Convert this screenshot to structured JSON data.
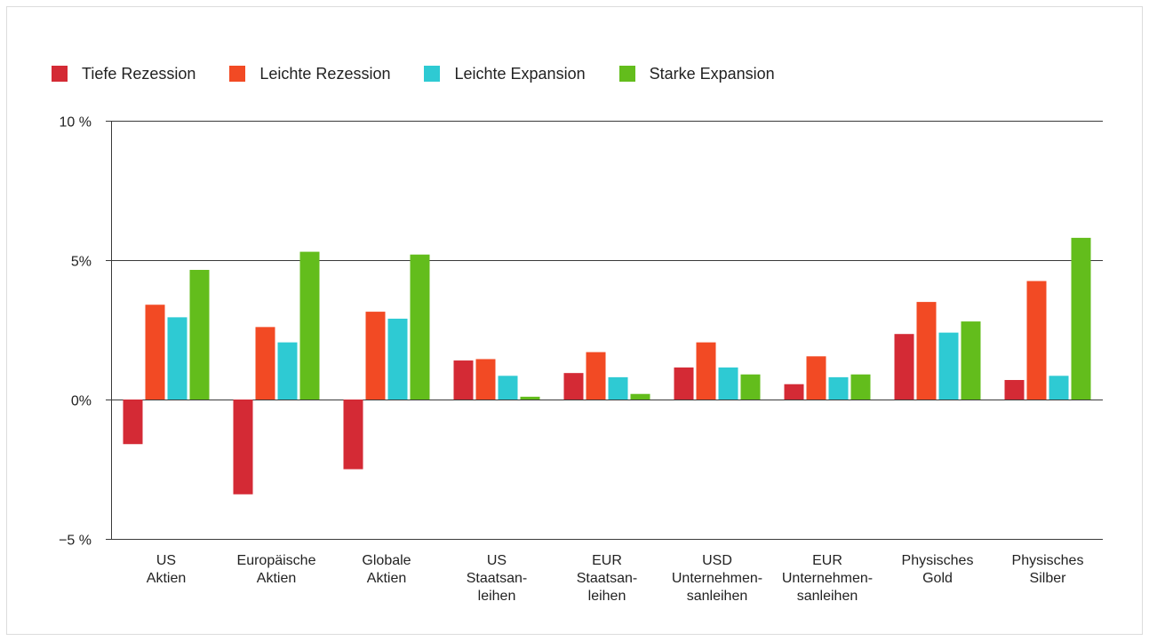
{
  "chart_data": {
    "type": "bar",
    "categories": [
      [
        "US",
        "Aktien"
      ],
      [
        "Europäische",
        "Aktien"
      ],
      [
        "Globale",
        "Aktien"
      ],
      [
        "US",
        "Staatsan-",
        "leihen"
      ],
      [
        "EUR",
        "Staatsan-",
        "leihen"
      ],
      [
        "USD",
        "Unternehmen-",
        "sanleihen"
      ],
      [
        "EUR",
        "Unternehmen-",
        "sanleihen"
      ],
      [
        "Physisches",
        "Gold"
      ],
      [
        "Physisches",
        "Silber"
      ]
    ],
    "series": [
      {
        "name": "Tiefe Rezession",
        "color": "#d42a35",
        "values": [
          -1.6,
          -3.4,
          -2.5,
          1.4,
          0.95,
          1.15,
          0.55,
          2.35,
          0.7
        ]
      },
      {
        "name": "Leichte Rezession",
        "color": "#f24a24",
        "values": [
          3.4,
          2.6,
          3.15,
          1.45,
          1.7,
          2.05,
          1.55,
          3.5,
          4.25
        ]
      },
      {
        "name": "Leichte Expansion",
        "color": "#2ecad3",
        "values": [
          2.95,
          2.05,
          2.9,
          0.85,
          0.8,
          1.15,
          0.8,
          2.4,
          0.85
        ]
      },
      {
        "name": "Starke Expansion",
        "color": "#63bd1c",
        "values": [
          4.65,
          5.3,
          5.2,
          0.1,
          0.2,
          0.9,
          0.9,
          2.8,
          5.8
        ]
      }
    ],
    "yticks": [
      -5,
      0,
      5,
      10
    ],
    "ytick_labels": [
      "−5 %",
      "0%",
      "5%",
      "10 %"
    ],
    "ylim": [
      -5,
      10
    ],
    "grid": true,
    "legend": "top-left"
  }
}
